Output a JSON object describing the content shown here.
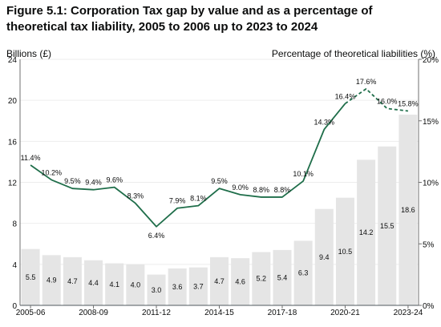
{
  "chart_data": {
    "type": "bar",
    "title": "Figure 5.1: Corporation Tax gap by value and as a percentage of theoretical tax liability, 2005 to 2006 up to 2023 to 2024",
    "ylabel": "Billions (£)",
    "y2label": "Percentage of theoretical liabilities (%)",
    "ylim": [
      0,
      24
    ],
    "y_ticks": [
      "0",
      "4",
      "8",
      "12",
      "16",
      "20",
      "24"
    ],
    "y2lim": [
      0,
      20
    ],
    "y2_ticks": [
      "0%",
      "5%",
      "10%",
      "15%",
      "20%"
    ],
    "grid": true,
    "categories": [
      "2005-06",
      "2006-07",
      "2007-08",
      "2008-09",
      "2009-10",
      "2010-11",
      "2011-12",
      "2012-13",
      "2013-14",
      "2014-15",
      "2015-16",
      "2016-17",
      "2017-18",
      "2018-19",
      "2019-20",
      "2020-21",
      "2021-22",
      "2022-23",
      "2023-24"
    ],
    "x_tick_labels": [
      "2005-06",
      "2008-09",
      "2011-12",
      "2014-15",
      "2017-18",
      "2020-21",
      "2023-24"
    ],
    "x_tick_indices": [
      0,
      3,
      6,
      9,
      12,
      15,
      18
    ],
    "series": [
      {
        "axis": "left",
        "kind": "bar",
        "values": [
          5.5,
          4.9,
          4.7,
          4.4,
          4.1,
          4.0,
          3.0,
          3.6,
          3.7,
          4.7,
          4.6,
          5.2,
          5.4,
          6.3,
          9.4,
          10.5,
          14.2,
          15.5,
          18.6
        ],
        "labels": [
          "5.5",
          "4.9",
          "4.7",
          "4.4",
          "4.1",
          "4.0",
          "3.0",
          "3.6",
          "3.7",
          "4.7",
          "4.6",
          "5.2",
          "5.4",
          "6.3",
          "9.4",
          "10.5",
          "14.2",
          "15.5",
          "18.6"
        ]
      },
      {
        "axis": "right",
        "kind": "line",
        "values": [
          11.4,
          10.2,
          9.5,
          9.4,
          9.6,
          8.3,
          6.4,
          7.9,
          8.1,
          9.5,
          9.0,
          8.8,
          8.8,
          10.1,
          14.3,
          16.4,
          17.6,
          16.0,
          15.8
        ],
        "labels": [
          "11.4%",
          "10.2%",
          "9.5%",
          "9.4%",
          "9.6%",
          "8.3%",
          "6.4%",
          "7.9%",
          "8.1%",
          "9.5%",
          "9.0%",
          "8.8%",
          "8.8%",
          "10.1%",
          "14.3%",
          "16.4%",
          "17.6%",
          "16.0%",
          "15.8%"
        ],
        "dashed_from_index": 15
      }
    ],
    "colors": {
      "bar": "#e5e5e5",
      "line": "#1f6e4a",
      "grid": "#ededed",
      "axis": "#6f6f6f",
      "text": "#0b0c0c"
    }
  }
}
